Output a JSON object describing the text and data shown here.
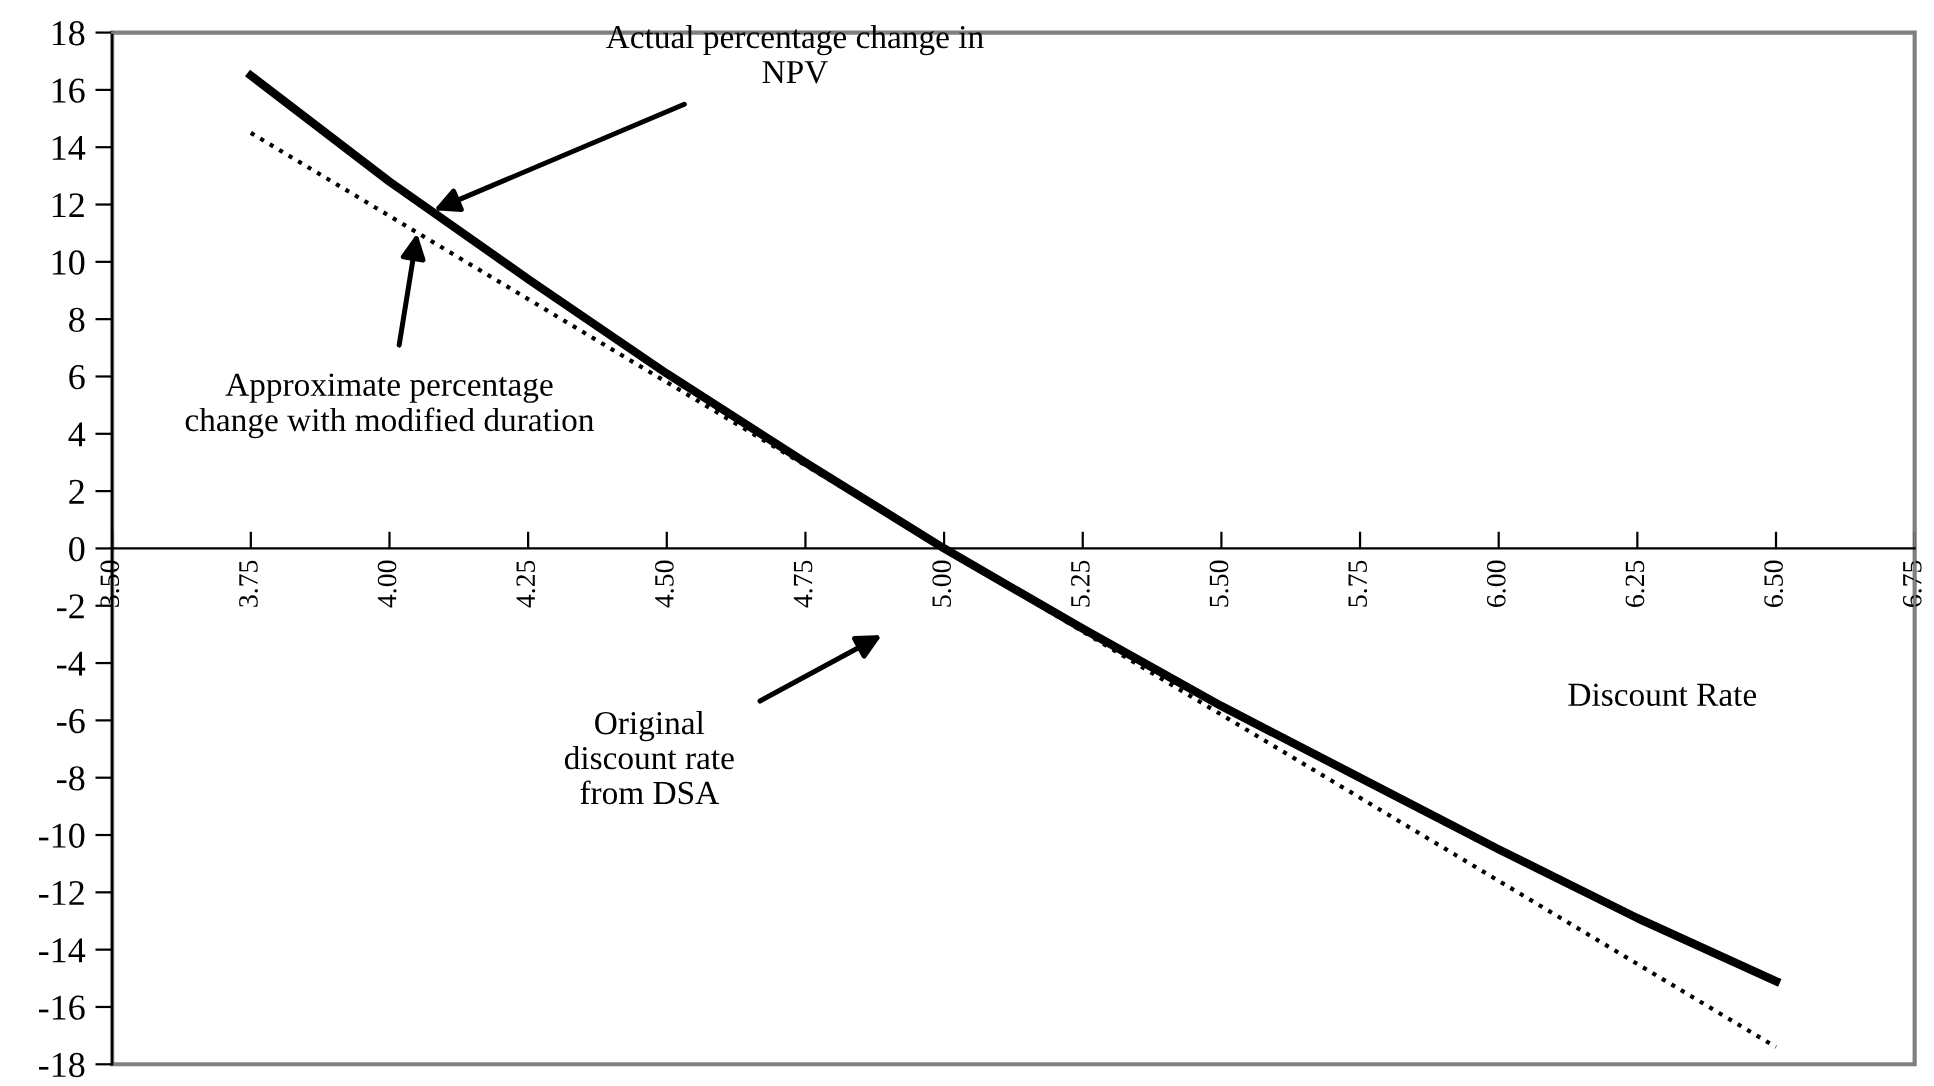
{
  "chart_data": {
    "type": "line",
    "xlabel": "Discount Rate",
    "x": [
      3.75,
      4.0,
      4.25,
      4.5,
      4.75,
      5.0,
      5.25,
      5.5,
      5.75,
      6.0,
      6.25,
      6.5
    ],
    "series": [
      {
        "color": "#000000",
        "line_style": "solid",
        "values": [
          16.5,
          12.8,
          9.4,
          6.1,
          3.0,
          0,
          -2.8,
          -5.5,
          -8.0,
          -10.5,
          -12.9,
          -15.1
        ]
      },
      {
        "color": "#000000",
        "line_style": "dotted",
        "values": [
          14.5,
          11.6,
          8.7,
          5.8,
          2.9,
          0,
          -2.9,
          -5.8,
          -8.7,
          -11.6,
          -14.5,
          -17.4
        ]
      }
    ],
    "xlim": [
      3.5,
      6.75
    ],
    "xticks": [
      {
        "value": 3.5,
        "label": "3.50"
      },
      {
        "value": 3.75,
        "label": "3.75"
      },
      {
        "value": 4.0,
        "label": "4.00"
      },
      {
        "value": 4.25,
        "label": "4.25"
      },
      {
        "value": 4.5,
        "label": "4.50"
      },
      {
        "value": 4.75,
        "label": "4.75"
      },
      {
        "value": 5.0,
        "label": "5.00"
      },
      {
        "value": 5.25,
        "label": "5.25"
      },
      {
        "value": 5.5,
        "label": "5.50"
      },
      {
        "value": 5.75,
        "label": "5.75"
      },
      {
        "value": 6.0,
        "label": "6.00"
      },
      {
        "value": 6.25,
        "label": "6.25"
      },
      {
        "value": 6.5,
        "label": "6.50"
      },
      {
        "value": 6.75,
        "label": "6.75"
      }
    ],
    "ylim": [
      -18,
      18
    ],
    "yticks": [
      -18,
      -16,
      -14,
      -12,
      -10,
      -8,
      -6,
      -4,
      -2,
      0,
      2,
      4,
      6,
      8,
      10,
      12,
      14,
      16,
      18
    ],
    "annotations": [
      {
        "text": "Actual percentage change in\nNPV",
        "x": 4.08,
        "y": 11.8
      },
      {
        "text": "Approximate percentage\nchange with modified duration",
        "x": 4.05,
        "y": 11.0
      },
      "Original\ndiscount rate\nfrom DSA"
    ],
    "marker": "none"
  }
}
